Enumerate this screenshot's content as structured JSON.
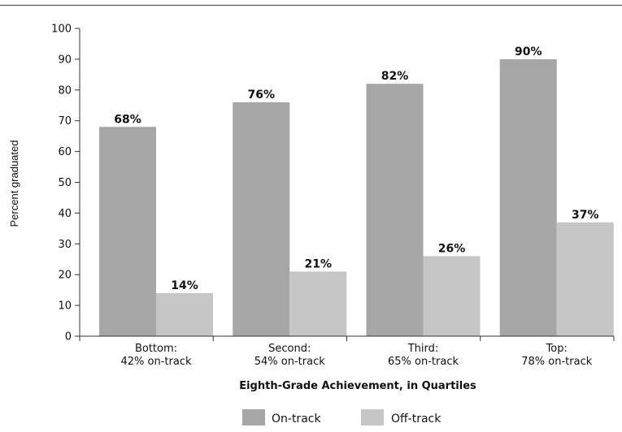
{
  "chart_data": {
    "type": "bar",
    "categories": [
      [
        "Bottom:",
        "42% on-track"
      ],
      [
        "Second:",
        "54% on-track"
      ],
      [
        "Third:",
        "65% on-track"
      ],
      [
        "Top:",
        "78% on-track"
      ]
    ],
    "series": [
      {
        "name": "On-track",
        "values": [
          68,
          76,
          82,
          90
        ],
        "labels": [
          "68%",
          "76%",
          "82%",
          "90%"
        ],
        "color": "#a6a6a6"
      },
      {
        "name": "Off-track",
        "values": [
          14,
          21,
          26,
          37
        ],
        "labels": [
          "14%",
          "21%",
          "26%",
          "37%"
        ],
        "color": "#c6c6c6"
      }
    ],
    "xlabel": "Eighth-Grade Achievement, in Quartiles",
    "ylabel": "Percent graduated",
    "ylim": [
      0,
      100
    ],
    "yticks": [
      0,
      10,
      20,
      30,
      40,
      50,
      60,
      70,
      80,
      90,
      100
    ],
    "grid": false,
    "legend": "bottom"
  }
}
